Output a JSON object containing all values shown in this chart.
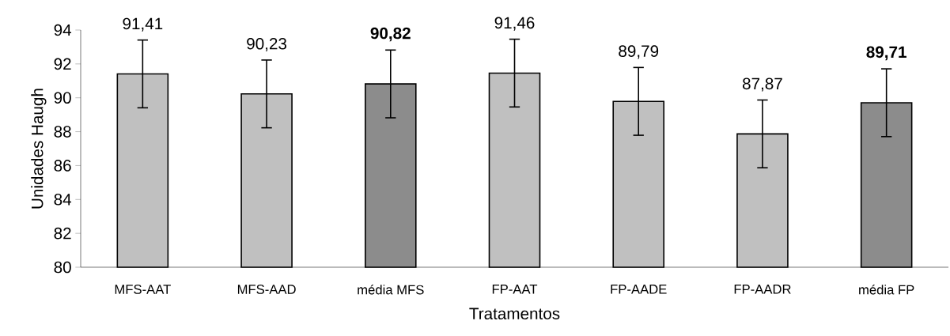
{
  "chart_data": {
    "type": "bar",
    "xlabel": "Tratamentos",
    "ylabel": "Unidades Haugh",
    "categories": [
      "MFS-AAT",
      "MFS-AAD",
      "média MFS",
      "FP-AAT",
      "FP-AADE",
      "FP-AADR",
      "média FP"
    ],
    "values": [
      91.41,
      90.23,
      90.82,
      91.46,
      89.79,
      87.87,
      89.71
    ],
    "errors": [
      2,
      2,
      2,
      2,
      2,
      2,
      2
    ],
    "value_labels": [
      "91,41",
      "90,23",
      "**90,82**",
      "91,46",
      "89,79",
      "87,87",
      "**89,71**"
    ],
    "colors": [
      "#c0c0c0",
      "#c0c0c0",
      "#8c8c8c",
      "#c0c0c0",
      "#c0c0c0",
      "#c0c0c0",
      "#8c8c8c"
    ],
    "ylim": [
      80,
      94
    ],
    "yticks": [
      80,
      82,
      84,
      86,
      88,
      90,
      92,
      94
    ],
    "grid": false
  }
}
